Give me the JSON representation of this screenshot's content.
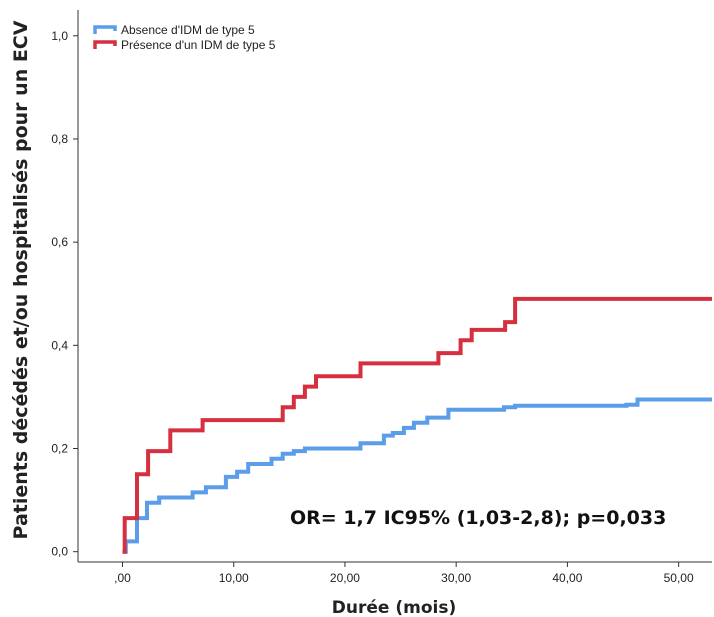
{
  "chart_data": {
    "type": "line",
    "step": true,
    "title": "",
    "xlabel": "Durée (mois)",
    "ylabel": "Patients décédés et/ou hospitalisés pour un ECV",
    "xlim": [
      -4,
      53
    ],
    "ylim": [
      -0.02,
      1.05
    ],
    "xticks": [
      0,
      10,
      20,
      30,
      40,
      50
    ],
    "xtick_labels": [
      ",00",
      "10,00",
      "20,00",
      "30,00",
      "40,00",
      "50,00"
    ],
    "yticks": [
      0,
      0.2,
      0.4,
      0.6,
      0.8,
      1.0
    ],
    "ytick_labels": [
      "0,0",
      "0,2",
      "0,4",
      "0,6",
      "0,8",
      "1,0"
    ],
    "grid": false,
    "legend_position": "top-left",
    "series": [
      {
        "name": "Absence d'IDM de type 5",
        "color": "#5b9de8",
        "x": [
          0,
          0.3,
          1.3,
          2.2,
          3.3,
          6.3,
          7.5,
          9.3,
          10.3,
          11.3,
          13.4,
          14.4,
          15.4,
          16.4,
          21.4,
          23.5,
          24.3,
          25.3,
          26.2,
          27.4,
          29.3,
          34.3,
          35.3,
          45.3,
          46.3,
          53
        ],
        "y": [
          0.0,
          0.02,
          0.065,
          0.095,
          0.105,
          0.115,
          0.125,
          0.145,
          0.155,
          0.17,
          0.18,
          0.19,
          0.195,
          0.2,
          0.21,
          0.225,
          0.23,
          0.24,
          0.25,
          0.26,
          0.275,
          0.28,
          0.283,
          0.285,
          0.295,
          0.295
        ]
      },
      {
        "name": "Présence d'un IDM de type 5",
        "color": "#d63040",
        "x": [
          0,
          0.2,
          1.3,
          2.3,
          4.3,
          7.2,
          14.4,
          15.4,
          16.4,
          17.4,
          21.4,
          28.4,
          30.4,
          31.4,
          34.4,
          35.3,
          53
        ],
        "y": [
          0.0,
          0.065,
          0.15,
          0.195,
          0.235,
          0.255,
          0.28,
          0.3,
          0.32,
          0.34,
          0.365,
          0.385,
          0.41,
          0.43,
          0.445,
          0.49,
          0.49
        ]
      }
    ],
    "annotation": "OR= 1,7 IC95% (1,03-2,8); p=0,033"
  }
}
